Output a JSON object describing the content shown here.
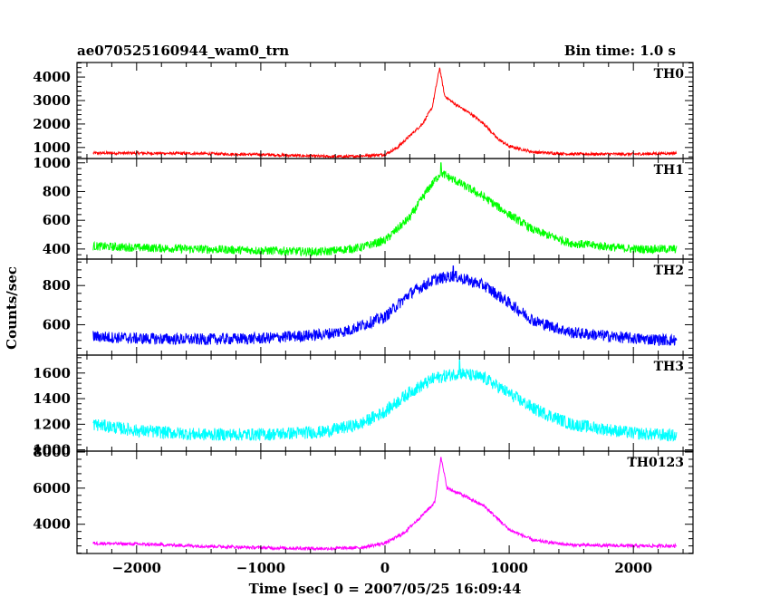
{
  "header": {
    "title": "ae070525160944_wam0_trn",
    "bin_time": "Bin time: 1.0 s"
  },
  "chart_data": {
    "type": "line",
    "xlabel": "Time [sec] 0 = 2007/05/25 16:09:44",
    "ylabel": "Counts/sec",
    "xlim": [
      -2480,
      2480
    ],
    "x_ticks": [
      -2000,
      -1000,
      0,
      1000,
      2000
    ],
    "x_tick_labels": [
      "−2000",
      "−1000",
      "0",
      "1000",
      "2000"
    ],
    "panels": [
      {
        "name": "TH0",
        "color": "#ff0000",
        "ylim": [
          530,
          4620
        ],
        "y_ticks": [
          1000,
          2000,
          3000,
          4000
        ],
        "baseline_left": 760,
        "baseline_min": 600,
        "peak_time": 440,
        "peak_value": 4400,
        "envelope": [
          [
            -2350,
            760
          ],
          [
            -2000,
            760
          ],
          [
            -1500,
            740
          ],
          [
            -1000,
            700
          ],
          [
            -500,
            620
          ],
          [
            -300,
            610
          ],
          [
            0,
            700
          ],
          [
            100,
            1000
          ],
          [
            200,
            1500
          ],
          [
            300,
            2000
          ],
          [
            380,
            2700
          ],
          [
            440,
            4400
          ],
          [
            480,
            3200
          ],
          [
            550,
            2900
          ],
          [
            700,
            2400
          ],
          [
            800,
            2000
          ],
          [
            900,
            1400
          ],
          [
            1000,
            1050
          ],
          [
            1200,
            800
          ],
          [
            1500,
            720
          ],
          [
            2000,
            720
          ],
          [
            2350,
            760
          ]
        ],
        "noise": 60
      },
      {
        "name": "TH1",
        "color": "#00ff00",
        "ylim": [
          330,
          1030
        ],
        "y_ticks": [
          400,
          600,
          800,
          1000
        ],
        "peak_time": 450,
        "peak_value": 1000,
        "envelope": [
          [
            -2350,
            420
          ],
          [
            -2000,
            410
          ],
          [
            -1500,
            400
          ],
          [
            -1000,
            390
          ],
          [
            -500,
            380
          ],
          [
            -200,
            410
          ],
          [
            0,
            460
          ],
          [
            200,
            620
          ],
          [
            350,
            820
          ],
          [
            450,
            930
          ],
          [
            600,
            860
          ],
          [
            800,
            760
          ],
          [
            1000,
            640
          ],
          [
            1200,
            530
          ],
          [
            1500,
            440
          ],
          [
            2000,
            400
          ],
          [
            2350,
            400
          ]
        ],
        "noise": 30
      },
      {
        "name": "TH2",
        "color": "#0000ff",
        "ylim": [
          445,
          935
        ],
        "y_ticks": [
          600,
          800
        ],
        "peak_time": 550,
        "peak_value": 900,
        "envelope": [
          [
            -2350,
            540
          ],
          [
            -2000,
            530
          ],
          [
            -1500,
            525
          ],
          [
            -1000,
            530
          ],
          [
            -500,
            550
          ],
          [
            -300,
            570
          ],
          [
            0,
            640
          ],
          [
            200,
            760
          ],
          [
            400,
            830
          ],
          [
            550,
            850
          ],
          [
            800,
            800
          ],
          [
            1000,
            710
          ],
          [
            1200,
            620
          ],
          [
            1500,
            560
          ],
          [
            2000,
            530
          ],
          [
            2350,
            520
          ]
        ],
        "noise": 30
      },
      {
        "name": "TH3",
        "color": "#00ffff",
        "ylim": [
          990,
          1740
        ],
        "y_ticks": [
          1000,
          1200,
          1400,
          1600
        ],
        "y_tick_labels": [
          "1000",
          "1200",
          "1400",
          "1600"
        ],
        "peak_time": 600,
        "peak_value": 1700,
        "envelope": [
          [
            -2350,
            1200
          ],
          [
            -2000,
            1150
          ],
          [
            -1500,
            1120
          ],
          [
            -1000,
            1120
          ],
          [
            -500,
            1140
          ],
          [
            -200,
            1200
          ],
          [
            0,
            1300
          ],
          [
            200,
            1450
          ],
          [
            400,
            1560
          ],
          [
            600,
            1600
          ],
          [
            800,
            1560
          ],
          [
            1000,
            1440
          ],
          [
            1200,
            1320
          ],
          [
            1500,
            1200
          ],
          [
            2000,
            1130
          ],
          [
            2350,
            1110
          ]
        ],
        "noise": 50
      },
      {
        "name": "TH0123",
        "color": "#ff00ff",
        "ylim": [
          2380,
          8050
        ],
        "y_ticks": [
          4000,
          6000,
          8000
        ],
        "peak_time": 450,
        "peak_value": 7700,
        "envelope": [
          [
            -2350,
            2950
          ],
          [
            -2000,
            2900
          ],
          [
            -1500,
            2800
          ],
          [
            -1000,
            2700
          ],
          [
            -500,
            2650
          ],
          [
            -200,
            2700
          ],
          [
            0,
            2950
          ],
          [
            150,
            3500
          ],
          [
            300,
            4500
          ],
          [
            400,
            5200
          ],
          [
            450,
            7700
          ],
          [
            500,
            6000
          ],
          [
            600,
            5700
          ],
          [
            800,
            5000
          ],
          [
            1000,
            3700
          ],
          [
            1200,
            3100
          ],
          [
            1500,
            2850
          ],
          [
            2000,
            2800
          ],
          [
            2350,
            2800
          ]
        ],
        "noise": 90
      }
    ]
  }
}
